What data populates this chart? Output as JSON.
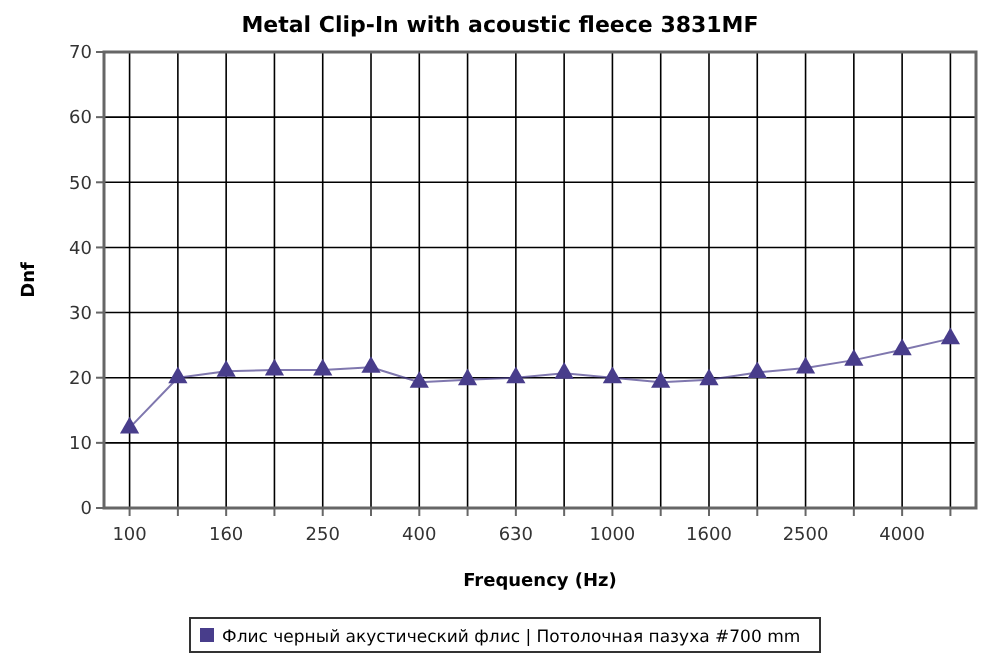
{
  "chart_data": {
    "type": "line",
    "title": "Metal Clip-In with acoustic fleece 3831MF",
    "xlabel": "Frequency (Hz)",
    "ylabel": "Dnf",
    "categories": [
      "100",
      null,
      "160",
      null,
      "250",
      null,
      "400",
      null,
      "630",
      null,
      "1000",
      null,
      "1600",
      null,
      "2500",
      null,
      "4000",
      null
    ],
    "series": [
      {
        "name": "Флис черный акустический флис | Потолочная пазуха #700 mm",
        "color": "#483d8b",
        "values": [
          12.3,
          20,
          21,
          21.2,
          21.2,
          21.6,
          19.3,
          19.7,
          20,
          20.7,
          20,
          19.3,
          19.7,
          20.8,
          21.5,
          22.7,
          24.3,
          26
        ]
      }
    ],
    "ylim": [
      0,
      70
    ],
    "yticks": [
      0,
      10,
      20,
      30,
      40,
      50,
      60,
      70
    ],
    "grid": true,
    "legend": "bottom",
    "marker": "triangle"
  }
}
